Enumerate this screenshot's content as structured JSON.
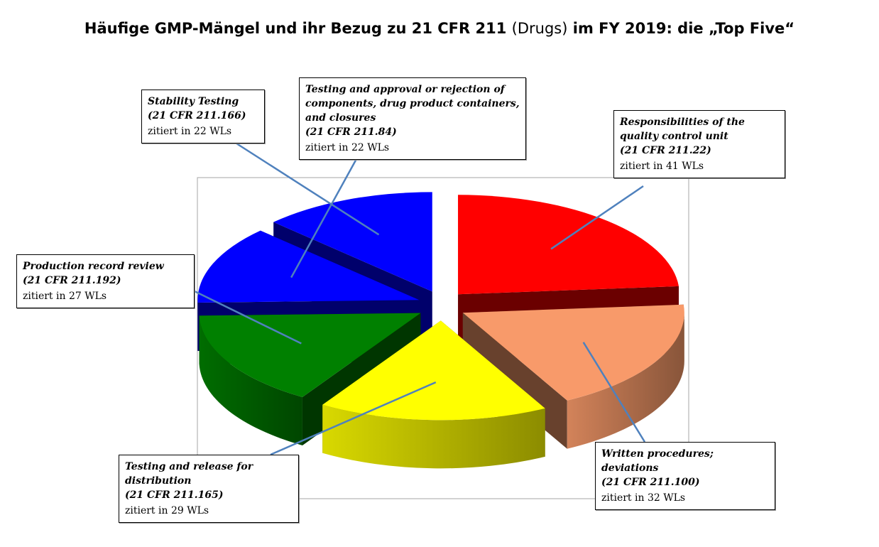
{
  "title": {
    "part1": "Häufige GMP-Mängel und ihr Bezug zu 21 CFR 211 ",
    "part2": "(Drugs)",
    "part3": " im FY 2019: die „Top Five“"
  },
  "chart_data": {
    "type": "pie",
    "title": "Häufige GMP-Mängel und ihr Bezug zu 21 CFR 211 (Drugs) im FY 2019: die „Top Five“",
    "slices": [
      {
        "label": "Responsibilities of the quality control unit",
        "reference": "(21 CFR 211.22)",
        "citation": "zitiert in 41 WLs",
        "value": 41,
        "color": "#ff0000"
      },
      {
        "label": "Written procedures; deviations",
        "reference": "(21 CFR 211.100)",
        "citation": "zitiert in 32 WLs",
        "value": 32,
        "color": "#f89a6a"
      },
      {
        "label": "Testing and release for distribution",
        "reference": "(21 CFR 211.165)",
        "citation": "zitiert in 29 WLs",
        "value": 29,
        "color": "#ffff00"
      },
      {
        "label": "Production record review",
        "reference": "(21 CFR 211.192)",
        "citation": "zitiert in 27 WLs",
        "value": 27,
        "color": "#008000"
      },
      {
        "label": "Testing and approval or rejection of components, drug product containers, and closures",
        "reference": "(21 CFR 211.84)",
        "citation": "zitiert in 22 WLs",
        "value": 22,
        "color": "#0000ff"
      },
      {
        "label": "Stability Testing",
        "reference": "(21 CFR 211.166)",
        "citation": "zitiert in 22 WLs",
        "value": 22,
        "color": "#0000ff"
      }
    ],
    "legend": "none",
    "exploded": true,
    "style": "3d"
  }
}
